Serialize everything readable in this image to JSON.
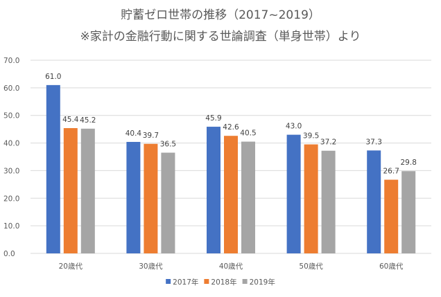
{
  "title": {
    "line1": "貯蓄ゼロ世帯の推移（2017~2019）",
    "line2": "※家計の金融行動に関する世論調査（単身世帯）より"
  },
  "colors": {
    "series_2017": "#4472C4",
    "series_2018": "#ED7D31",
    "series_2019": "#A5A5A5",
    "gridline": "#D9D9D9",
    "text": "#595959"
  },
  "chart_data": {
    "type": "bar",
    "title": "貯蓄ゼロ世帯の推移（2017~2019） ※家計の金融行動に関する世論調査（単身世帯）より",
    "categories": [
      "20歳代",
      "30歳代",
      "40歳代",
      "50歳代",
      "60歳代"
    ],
    "series": [
      {
        "name": "2017年",
        "values": [
          61.0,
          40.4,
          45.9,
          43.0,
          37.3
        ]
      },
      {
        "name": "2018年",
        "values": [
          45.4,
          39.7,
          42.6,
          39.5,
          26.7
        ]
      },
      {
        "name": "2019年",
        "values": [
          45.2,
          36.5,
          40.5,
          37.2,
          29.8
        ]
      }
    ],
    "yticks": [
      "0.0",
      "10.0",
      "20.0",
      "30.0",
      "40.0",
      "50.0",
      "60.0",
      "70.0"
    ],
    "ylim": [
      0,
      70
    ],
    "grid": true,
    "legend_position": "bottom",
    "xlabel": "",
    "ylabel": ""
  }
}
